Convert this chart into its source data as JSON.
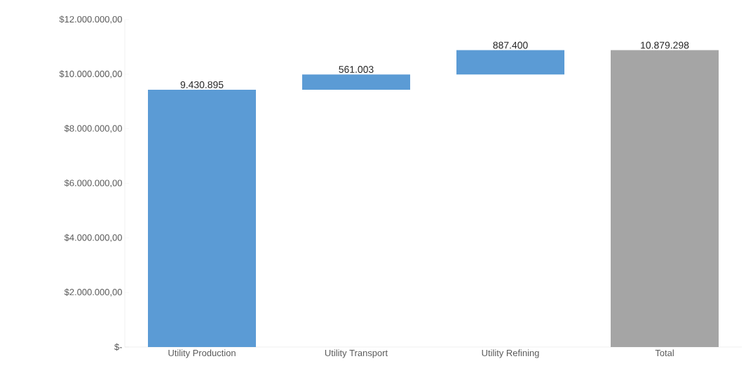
{
  "chart_data": {
    "type": "bar",
    "categories": [
      "Utility Production",
      "Utility Transport",
      "Utility Refining",
      "Total"
    ],
    "values": [
      9430895,
      561003,
      887400,
      10879298
    ],
    "base": [
      0,
      9430895,
      9991898,
      0
    ],
    "colors": [
      "#5b9bd5",
      "#5b9bd5",
      "#5b9bd5",
      "#a5a5a5"
    ],
    "value_labels": [
      "9.430.895",
      "561.003",
      "887.400",
      "10.879.298"
    ],
    "ylim": [
      0,
      12000000
    ],
    "yticks": [
      {
        "value": 0,
        "label": "$-"
      },
      {
        "value": 2000000,
        "label": "$2.000.000,00"
      },
      {
        "value": 4000000,
        "label": "$4.000.000,00"
      },
      {
        "value": 6000000,
        "label": "$6.000.000,00"
      },
      {
        "value": 8000000,
        "label": "$8.000.000,00"
      },
      {
        "value": 10000000,
        "label": "$10.000.000,00"
      },
      {
        "value": 12000000,
        "label": "$12.000.000,00"
      }
    ],
    "grid": false
  }
}
